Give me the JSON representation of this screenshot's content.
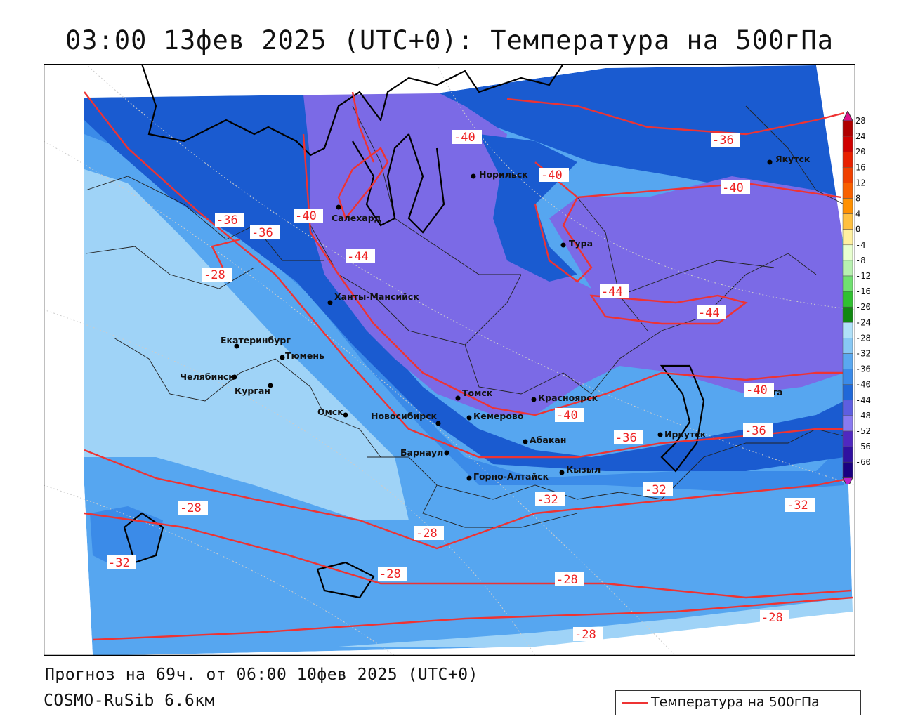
{
  "title": "03:00 13фев 2025 (UTC+0): Температура на 500гПа",
  "footer": {
    "forecast": "Прогноз на 69ч. от 06:00 10фев 2025 (UTC+0)",
    "model": "COSMO-RuSib 6.6км"
  },
  "legend": {
    "label": "Температура на 500гПа",
    "line_color": "#ee3333"
  },
  "colors": {
    "band_-24": "#9fd3f7",
    "band_-28": "#56a6f0",
    "band_-32": "#3b8be8",
    "band_-36": "#2a6fe0",
    "band_-40": "#1a5bd0",
    "band_-44": "#7b6ae6",
    "band_-48": "#8f7df0",
    "isotherm": "#ee3333"
  },
  "color_scale": {
    "ticks": [
      "28",
      "24",
      "20",
      "16",
      "12",
      "8",
      "4",
      "0",
      "-4",
      "-8",
      "-12",
      "-16",
      "-20",
      "-24",
      "-28",
      "-32",
      "-36",
      "-40",
      "-44",
      "-48",
      "-52",
      "-56",
      "-60"
    ],
    "colors": [
      "#b00000",
      "#d00000",
      "#e82000",
      "#f04000",
      "#f86000",
      "#ff9000",
      "#ffc040",
      "#fff0a0",
      "#e8ffd0",
      "#b8f0b0",
      "#70e070",
      "#30c030",
      "#108810",
      "#b0e0f8",
      "#88c8f4",
      "#5aa8f0",
      "#3a8ae8",
      "#1f68d8",
      "#5e5ee0",
      "#8a7af0",
      "#5028c0",
      "#3010a0",
      "#1a0080"
    ],
    "top_arrow_color": "#dd1188",
    "bottom_arrow_color": "#bb22cc"
  },
  "cities": [
    {
      "name": "Якутск"
    },
    {
      "name": "Норильск"
    },
    {
      "name": "Салехард"
    },
    {
      "name": "Тура"
    },
    {
      "name": "Ханты-Мансийск"
    },
    {
      "name": "Екатеринбург"
    },
    {
      "name": "Тюмень"
    },
    {
      "name": "Челябинск"
    },
    {
      "name": "Курган"
    },
    {
      "name": "Омск"
    },
    {
      "name": "Новосибирск"
    },
    {
      "name": "Томск"
    },
    {
      "name": "Кемерово"
    },
    {
      "name": "Красноярск"
    },
    {
      "name": "Абакан"
    },
    {
      "name": "Барнаул"
    },
    {
      "name": "Горно-Алтайск"
    },
    {
      "name": "Кызыл"
    },
    {
      "name": "Иркутск"
    },
    {
      "name": "Чита"
    }
  ],
  "isotherm_labels": [
    "-40",
    "-36",
    "-40",
    "-40",
    "-36",
    "-36",
    "-40",
    "-44",
    "-28",
    "-44",
    "-44",
    "-40",
    "-40",
    "-36",
    "-36",
    "-32",
    "-32",
    "-28",
    "-32",
    "-28",
    "-28",
    "-32",
    "-28",
    "-28",
    "-28"
  ]
}
